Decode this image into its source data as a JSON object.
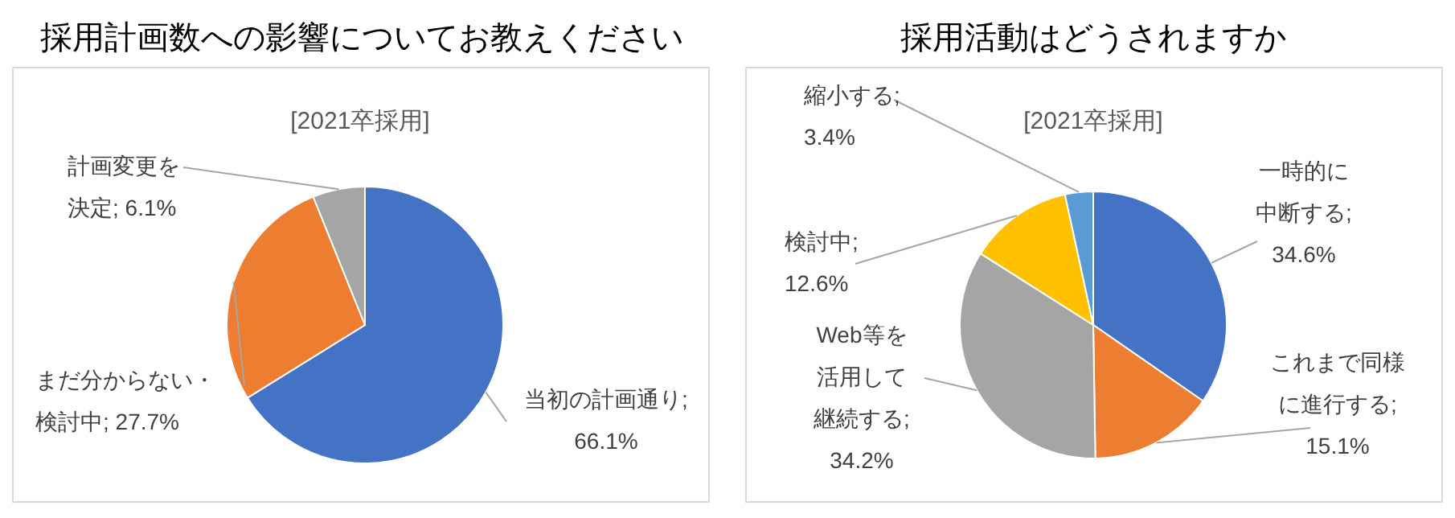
{
  "chart_data": [
    {
      "type": "pie",
      "title": "採用計画数への影響についてお教えください",
      "subtitle": "[2021卒採用]",
      "categories": [
        "当初の計画通り",
        "まだ分からない・検討中",
        "計画変更を決定"
      ],
      "values": [
        66.1,
        27.7,
        6.1
      ],
      "colors": [
        "#4472c4",
        "#ed7d31",
        "#a5a5a5"
      ],
      "value_labels": [
        "; 66.1%",
        "; 27.7%",
        "; 6.1%"
      ],
      "legend": false
    },
    {
      "type": "pie",
      "title": "採用活動はどうされますか",
      "subtitle": "[2021卒採用]",
      "categories": [
        "一時的に中断する",
        "これまで同様に進行する",
        "Web等を活用して継続する",
        "検討中",
        "縮小する"
      ],
      "values": [
        34.6,
        15.1,
        34.2,
        12.6,
        3.4
      ],
      "colors": [
        "#4472c4",
        "#ed7d31",
        "#a5a5a5",
        "#ffc000",
        "#5b9bd5"
      ],
      "value_labels": [
        "; 34.6%",
        "; 15.1%",
        "; 34.2%",
        "; 12.6%",
        "; 3.4%"
      ],
      "legend": false
    }
  ]
}
